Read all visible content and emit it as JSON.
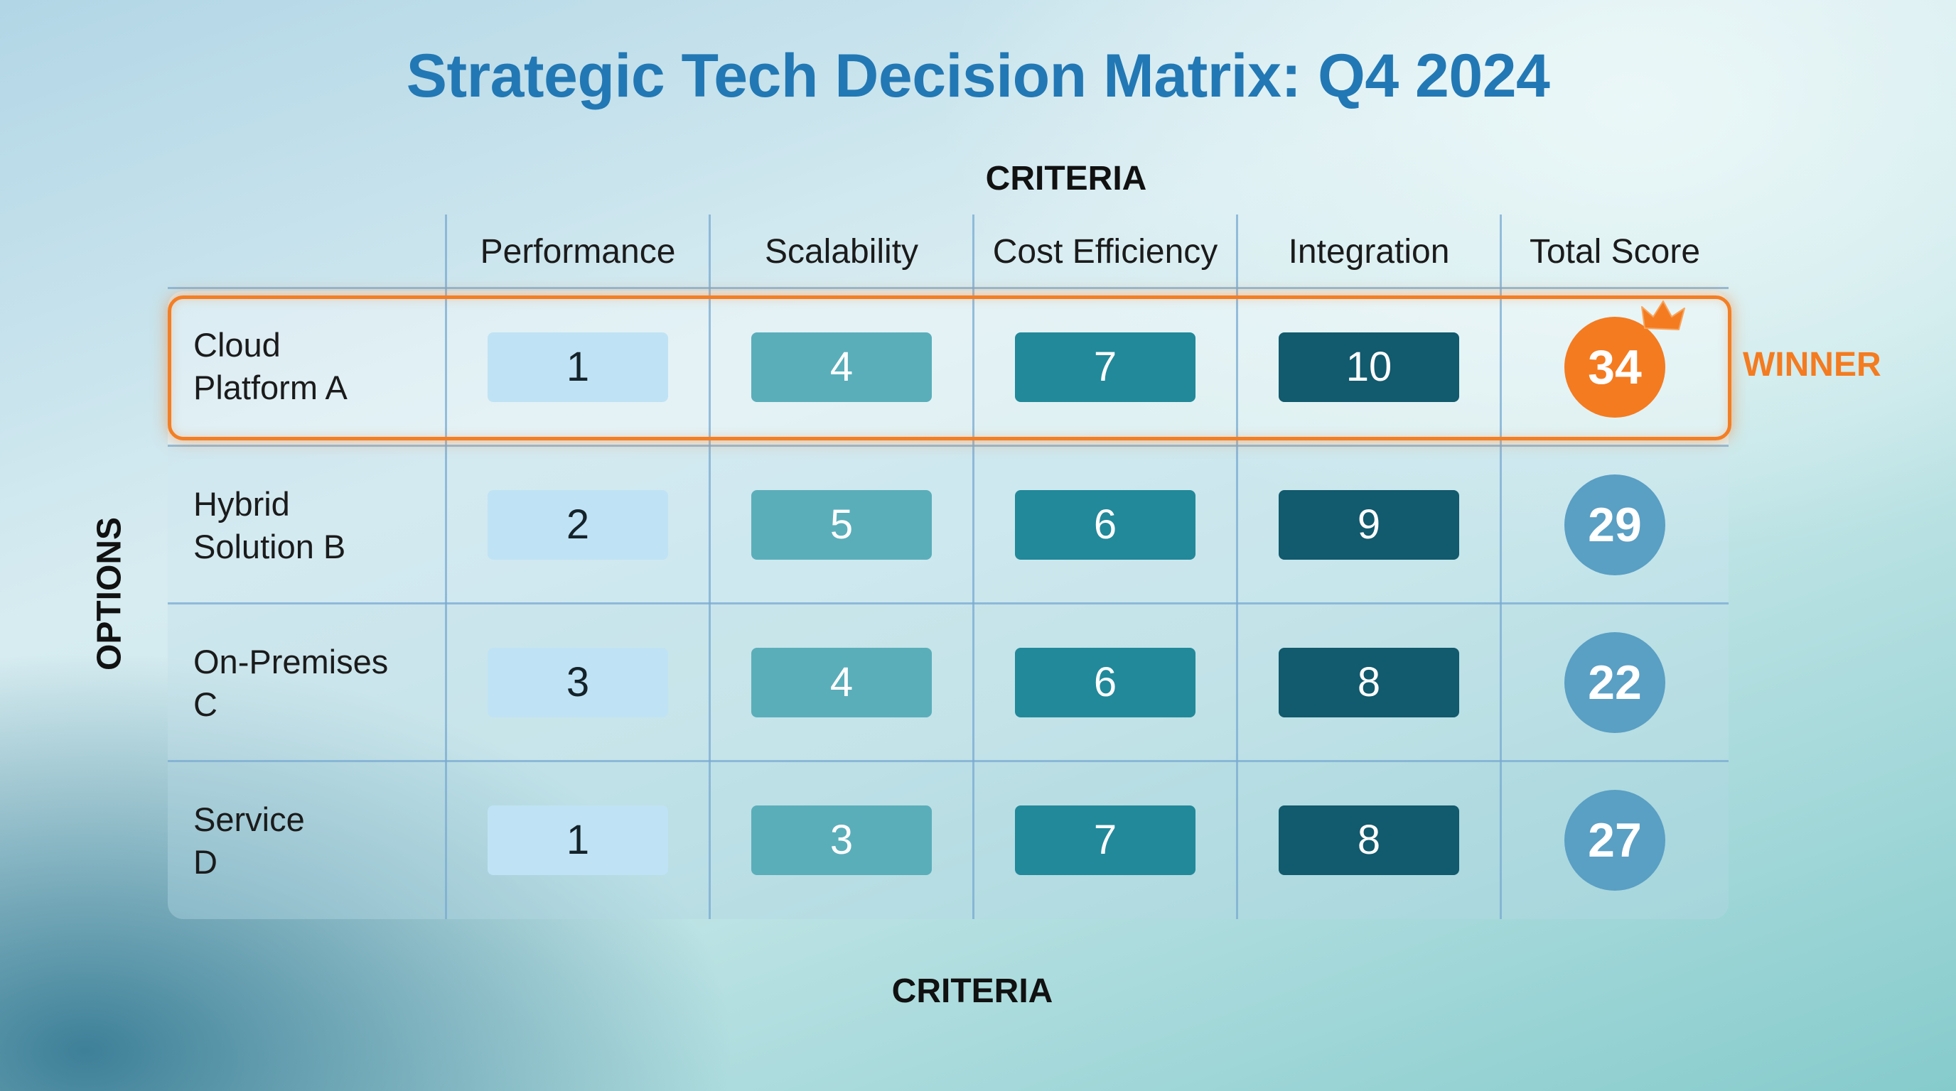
{
  "title": "Strategic Tech Decision Matrix: Q4 2024",
  "axis": {
    "criteria_top": "CRITERIA",
    "criteria_bottom": "CRITERIA",
    "options": "OPTIONS"
  },
  "columns": [
    "Performance",
    "Scalability",
    "Cost Efficiency",
    "Integration",
    "Total Score"
  ],
  "rows": [
    {
      "label_line1": "Cloud",
      "label_line2": "Platform A",
      "scores": [
        "1",
        "4",
        "7",
        "10"
      ],
      "total": "34",
      "winner": true
    },
    {
      "label_line1": "Hybrid",
      "label_line2": "Solution B",
      "scores": [
        "2",
        "5",
        "6",
        "9"
      ],
      "total": "29",
      "winner": false
    },
    {
      "label_line1": "On-Premises",
      "label_line2": "C",
      "scores": [
        "3",
        "4",
        "6",
        "8"
      ],
      "total": "22",
      "winner": false
    },
    {
      "label_line1": "Service",
      "label_line2": "D",
      "scores": [
        "1",
        "3",
        "7",
        "8"
      ],
      "total": "27",
      "winner": false
    }
  ],
  "winner_label": "WINNER",
  "icons": {
    "crown": "crown-icon"
  },
  "colors": {
    "title": "#2278b4",
    "performance": "#bfe3f4",
    "scalability": "#5aaeba",
    "cost_efficiency": "#21899a",
    "integration": "#125a6d",
    "total_score": "#5a9fc4",
    "winner_accent": "#f47b20"
  }
}
